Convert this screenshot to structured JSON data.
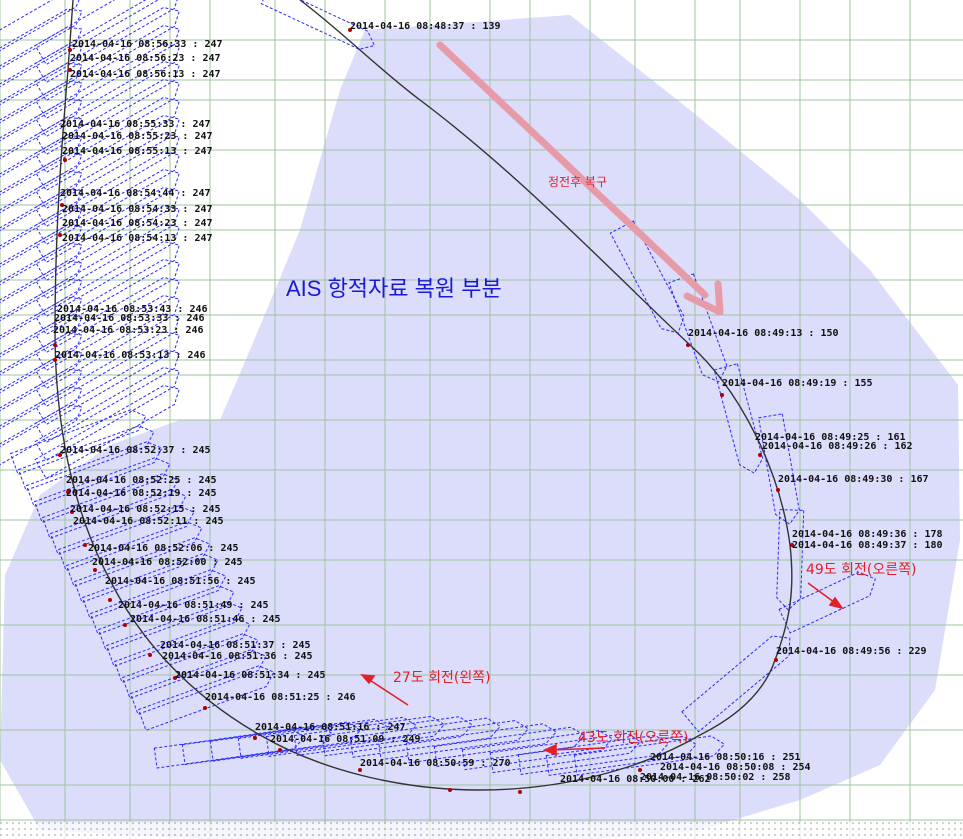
{
  "map": {
    "title_label": "AIS 항적자료 복원 부분",
    "arrow_label": "정전후 복구",
    "turns": [
      {
        "label": "27도 회전(왼쪽)"
      },
      {
        "label": "43도 회전(오른쪽)"
      },
      {
        "label": "49도 회전(오른쪽)"
      }
    ],
    "colors": {
      "restore_area": "#dcdcfb",
      "grid": "#9fc39f",
      "track": "#333333",
      "ship_outline": "#2a2aff",
      "annotation": "#e0202a",
      "big_arrow": "#e79aa7"
    },
    "timestamps": [
      "2014-04-16 08:48:37 : 139",
      "2014-04-16 08:49:13 : 150",
      "2014-04-16 08:49:19 : 155",
      "2014-04-16 08:49:25 : 161",
      "2014-04-16 08:49:26 : 162",
      "2014-04-16 08:49:30 : 167",
      "2014-04-16 08:49:36 : 178",
      "2014-04-16 08:49:37 : 180",
      "2014-04-16 08:49:56 : 229",
      "2014-04-16 08:56:33 : 247",
      "2014-04-16 08:56:23 : 247",
      "2014-04-16 08:56:13 : 247",
      "2014-04-16 08:55:33 : 247",
      "2014-04-16 08:55:23 : 247",
      "2014-04-16 08:55:13 : 247",
      "2014-04-16 08:54:44 : 247",
      "2014-04-16 08:54:33 : 247",
      "2014-04-16 08:54:23 : 247",
      "2014-04-16 08:54:13 : 247",
      "2014-04-16 08:53:43 : 246",
      "2014-04-16 08:53:33 : 246",
      "2014-04-16 08:53:23 : 246",
      "2014-04-16 08:53:13 : 246",
      "2014-04-16 08:52:37 : 245",
      "2014-04-16 08:52:25 : 245",
      "2014-04-16 08:52:19 : 245",
      "2014-04-16 08:52:15 : 245",
      "2014-04-16 08:52:11 : 245",
      "2014-04-16 08:52:06 : 245",
      "2014-04-16 08:52:00 : 245",
      "2014-04-16 08:51:56 : 245",
      "2014-04-16 08:51:49 : 245",
      "2014-04-16 08:51:46 : 245",
      "2014-04-16 08:51:37 : 245",
      "2014-04-16 08:51:36 : 245",
      "2014-04-16 08:51:34 : 245",
      "2014-04-16 08:51:25 : 246",
      "2014-04-16 08:51:16 : 247",
      "2014-04-16 08:51:09 : 249",
      "2014-04-16 08:50:59 : 270",
      "2014-04-16 08:50:16 : 251",
      "2014-04-16 08:50:08 : 254",
      "2014-04-16 08:50:02 : 258",
      "2014-04-16 08:50:00 : 262"
    ]
  }
}
